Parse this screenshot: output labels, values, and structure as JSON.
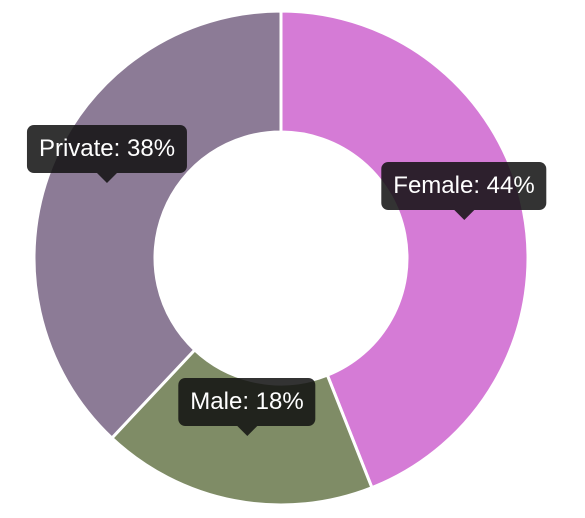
{
  "chart_data": {
    "type": "pie",
    "title": "",
    "donut": true,
    "categories": [
      "Female",
      "Male",
      "Private"
    ],
    "values": [
      44,
      18,
      38
    ],
    "unit": "%",
    "labels": [
      "Female: 44%",
      "Male: 18%",
      "Private: 38%"
    ],
    "colors": [
      "#d57bd6",
      "#7f8c66",
      "#8c7b96"
    ],
    "slice_border_color": "#ffffff",
    "start": "12 o'clock",
    "direction": "clockwise"
  }
}
